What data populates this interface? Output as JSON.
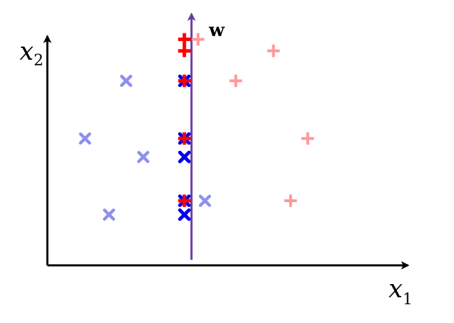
{
  "labels": {
    "x_axis_main": "x",
    "x_axis_sub": "1",
    "y_axis_main": "x",
    "y_axis_sub": "2",
    "vector": "w"
  },
  "colors": {
    "axis": "#000000",
    "vector": "#6a3aa0",
    "class_plus_original": "#ff9898",
    "class_cross_original": "#8f8ff0",
    "class_plus_projected": "#ff0000",
    "class_cross_projected": "#0000ee"
  },
  "points": {
    "plus_original": [
      {
        "x": 0.44,
        "y": 0.98
      },
      {
        "x": 0.66,
        "y": 0.93
      },
      {
        "x": 0.55,
        "y": 0.8
      },
      {
        "x": 0.76,
        "y": 0.55
      },
      {
        "x": 0.71,
        "y": 0.28
      }
    ],
    "cross_original": [
      {
        "x": 0.23,
        "y": 0.8
      },
      {
        "x": 0.11,
        "y": 0.55
      },
      {
        "x": 0.28,
        "y": 0.47
      },
      {
        "x": 0.46,
        "y": 0.28
      },
      {
        "x": 0.18,
        "y": 0.22
      }
    ],
    "plus_projected_y": [
      0.98,
      0.93,
      0.8,
      0.55,
      0.28
    ],
    "cross_projected_y": [
      0.8,
      0.55,
      0.47,
      0.28,
      0.22
    ],
    "projection_x": 0.4
  }
}
